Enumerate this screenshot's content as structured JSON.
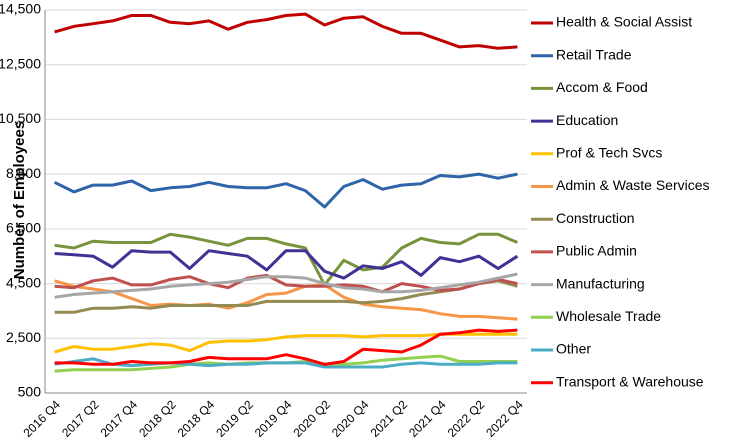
{
  "chart_data": {
    "type": "line",
    "y_axis_label": "Number of Employees",
    "categories": [
      "2016 Q4",
      null,
      "2017 Q2",
      null,
      "2017 Q4",
      null,
      "2018 Q2",
      null,
      "2018 Q4",
      null,
      "2019 Q2",
      null,
      "2019 Q4",
      null,
      "2020 Q2",
      null,
      "2020 Q4",
      null,
      "2021 Q2",
      null,
      "2021 Q4",
      null,
      "2022 Q2",
      null,
      "2022 Q4"
    ],
    "ylim": [
      500,
      14500
    ],
    "yticks": [
      500,
      {
        "value": 2500,
        "label": "2,500"
      },
      {
        "value": 4500,
        "label": "4,500"
      },
      {
        "value": 6500,
        "label": "6,500"
      },
      {
        "value": 8500,
        "label": "8,500"
      },
      {
        "value": 10500,
        "label": "10,500"
      },
      {
        "value": 12500,
        "label": "12,500"
      },
      {
        "value": 14500,
        "label": "14,500"
      }
    ],
    "grid": true,
    "legend": "right",
    "series": [
      {
        "name": "Health & Social Assist",
        "color": "#c00000",
        "values": [
          13700,
          13900,
          14000,
          14100,
          14300,
          14300,
          14050,
          14000,
          14100,
          13800,
          14050,
          14150,
          14300,
          14350,
          13950,
          14200,
          14250,
          13900,
          13650,
          13650,
          13400,
          13150,
          13200,
          13100,
          13150
        ]
      },
      {
        "name": "Retail Trade",
        "color": "#2e64a8",
        "values": [
          8200,
          7850,
          8100,
          8100,
          8250,
          7900,
          8000,
          8050,
          8200,
          8050,
          8000,
          8000,
          8150,
          7900,
          7300,
          8050,
          8300,
          7950,
          8100,
          8150,
          8450,
          8400,
          8500,
          8350,
          8500
        ]
      },
      {
        "name": "Accom & Food",
        "color": "#77933c",
        "values": [
          5900,
          5800,
          6050,
          6000,
          6000,
          6000,
          6300,
          6200,
          6050,
          5900,
          6150,
          6150,
          5950,
          5800,
          4450,
          5350,
          5000,
          5100,
          5800,
          6150,
          6000,
          5950,
          6300,
          6300,
          6000
        ]
      },
      {
        "name": "Education",
        "color": "#403294",
        "values": [
          5600,
          5550,
          5500,
          5100,
          5700,
          5650,
          5650,
          5050,
          5700,
          5600,
          5500,
          5000,
          5700,
          5700,
          4950,
          4700,
          5150,
          5050,
          5300,
          4800,
          5450,
          5300,
          5500,
          5050,
          5500
        ]
      },
      {
        "name": "Prof & Tech Svcs",
        "color": "#ffc000",
        "values": [
          2000,
          2200,
          2100,
          2100,
          2200,
          2300,
          2250,
          2050,
          2350,
          2400,
          2400,
          2450,
          2550,
          2600,
          2600,
          2600,
          2550,
          2600,
          2600,
          2600,
          2650,
          2650,
          2650,
          2650,
          2650
        ]
      },
      {
        "name": "Admin & Waste Services",
        "color": "#f79646",
        "values": [
          4600,
          4400,
          4300,
          4200,
          3950,
          3700,
          3750,
          3700,
          3750,
          3600,
          3800,
          4100,
          4150,
          4400,
          4450,
          4000,
          3750,
          3650,
          3600,
          3550,
          3400,
          3300,
          3300,
          3250,
          3200
        ]
      },
      {
        "name": "Construction",
        "color": "#948a54",
        "values": [
          3450,
          3450,
          3600,
          3600,
          3650,
          3600,
          3700,
          3700,
          3700,
          3700,
          3700,
          3850,
          3850,
          3850,
          3850,
          3850,
          3800,
          3850,
          3950,
          4100,
          4200,
          4300,
          4500,
          4600,
          4400
        ]
      },
      {
        "name": "Public Admin",
        "color": "#c0504d",
        "values": [
          4400,
          4350,
          4600,
          4700,
          4450,
          4450,
          4650,
          4750,
          4500,
          4350,
          4700,
          4800,
          4450,
          4400,
          4400,
          4450,
          4400,
          4200,
          4500,
          4400,
          4250,
          4300,
          4500,
          4650,
          4500
        ]
      },
      {
        "name": "Manufacturing",
        "color": "#a6a6a6",
        "values": [
          4000,
          4100,
          4150,
          4200,
          4250,
          4300,
          4400,
          4450,
          4500,
          4550,
          4650,
          4750,
          4750,
          4700,
          4500,
          4350,
          4300,
          4200,
          4200,
          4250,
          4350,
          4450,
          4550,
          4700,
          4850
        ]
      },
      {
        "name": "Wholesale Trade",
        "color": "#92d050",
        "values": [
          1300,
          1350,
          1350,
          1350,
          1350,
          1400,
          1450,
          1550,
          1600,
          1550,
          1600,
          1600,
          1600,
          1650,
          1550,
          1550,
          1600,
          1700,
          1750,
          1800,
          1850,
          1650,
          1650,
          1650,
          1650
        ]
      },
      {
        "name": "Other",
        "color": "#4bacc6",
        "values": [
          1550,
          1650,
          1750,
          1550,
          1500,
          1550,
          1600,
          1550,
          1500,
          1550,
          1550,
          1600,
          1600,
          1600,
          1450,
          1450,
          1450,
          1450,
          1550,
          1600,
          1550,
          1550,
          1550,
          1600,
          1600
        ]
      },
      {
        "name": "Transport & Warehouse",
        "color": "#ff0000",
        "values": [
          1600,
          1600,
          1550,
          1550,
          1650,
          1600,
          1600,
          1650,
          1800,
          1750,
          1750,
          1750,
          1900,
          1750,
          1550,
          1650,
          2100,
          2050,
          2000,
          2250,
          2650,
          2700,
          2800,
          2750,
          2800
        ]
      }
    ]
  }
}
